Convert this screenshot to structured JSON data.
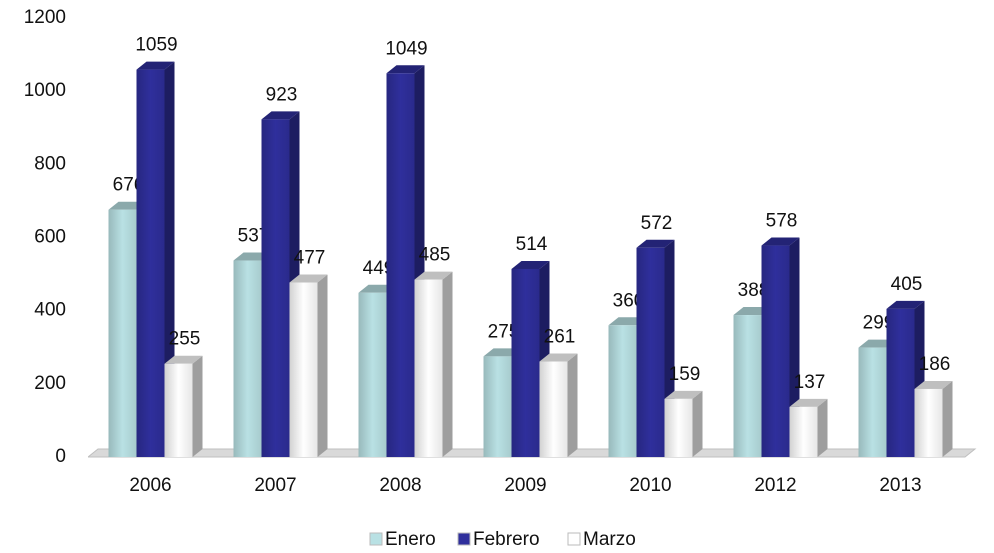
{
  "chart_data": {
    "type": "bar3d",
    "categories": [
      "2006",
      "2007",
      "2008",
      "2009",
      "2010",
      "2012",
      "2013"
    ],
    "series": [
      {
        "name": "Enero",
        "color": "#b9e1e4",
        "values": [
          676,
          537,
          449,
          275,
          360,
          388,
          299
        ]
      },
      {
        "name": "Febrero",
        "color": "#2f2f9c",
        "values": [
          1059,
          923,
          1049,
          514,
          572,
          578,
          405
        ]
      },
      {
        "name": "Marzo",
        "color": "#ffffff",
        "values": [
          255,
          477,
          485,
          261,
          159,
          137,
          186
        ]
      }
    ],
    "ylim": [
      0,
      1200
    ],
    "yticks": [
      0,
      200,
      400,
      600,
      800,
      1000,
      1200
    ],
    "legend": "bottom"
  }
}
